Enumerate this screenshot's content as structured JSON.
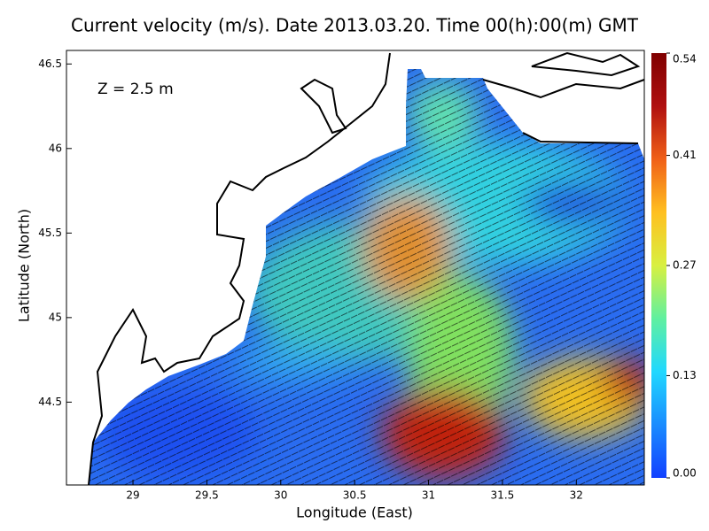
{
  "chart_data": {
    "type": "map",
    "title": "Current velocity (m/s). Date 2013.03.20. Time 00(h):00(m) GMT",
    "annotation": "Z = 2.5 m",
    "xlabel": "Longitude (East)",
    "ylabel": "Latitude (North)",
    "xlim": [
      28.55,
      32.46
    ],
    "xticks": [
      29,
      29.5,
      30,
      30.5,
      31,
      31.5,
      32
    ],
    "ylim": [
      44.01,
      46.58
    ],
    "yticks": [
      44.5,
      45,
      45.5,
      46,
      46.5
    ],
    "colorbar": {
      "lim": [
        0,
        0.54
      ],
      "ticks": [
        {
          "value": 0,
          "label": "0.00"
        },
        0.13,
        0.27,
        0.41,
        0.54
      ],
      "colors": [
        "#1240ff",
        "#1a8cff",
        "#20d8ff",
        "#60f0a0",
        "#d8f040",
        "#ffc020",
        "#f06018",
        "#b01010",
        "#800000"
      ]
    }
  }
}
